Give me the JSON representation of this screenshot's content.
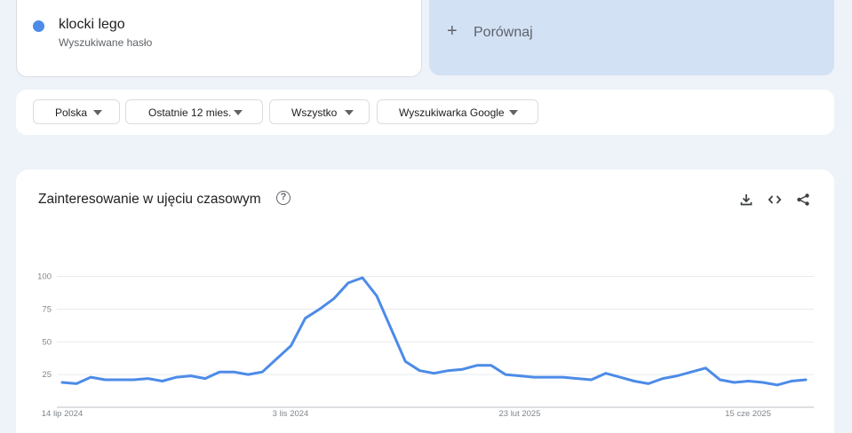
{
  "term": {
    "title": "klocki lego",
    "subtitle": "Wyszukiwane hasło",
    "color": "#4c8be8"
  },
  "compare": {
    "label": "Porównaj"
  },
  "filters": [
    {
      "label": "Polska"
    },
    {
      "label": "Ostatnie 12 mies."
    },
    {
      "label": "Wszystko"
    },
    {
      "label": "Wyszukiwarka Google"
    }
  ],
  "chart": {
    "title": "Zainteresowanie w ujęciu czasowym",
    "icons": [
      "help-icon",
      "download-icon",
      "embed-icon",
      "share-icon"
    ]
  },
  "chart_data": {
    "type": "line",
    "title": "Zainteresowanie w ujęciu czasowym",
    "ylim": [
      0,
      100
    ],
    "yticks": [
      "100",
      "75",
      "50",
      "25"
    ],
    "xticks": [
      "14 lip 2024",
      "3 lis 2024",
      "23 lut 2025",
      "15 cze 2025"
    ],
    "grid": true,
    "series": [
      {
        "color": "#4c8be8",
        "values": [
          19,
          18,
          23,
          21,
          21,
          21,
          22,
          20,
          23,
          24,
          22,
          27,
          27,
          25,
          27,
          37,
          47,
          68,
          75,
          83,
          95,
          99,
          85,
          60,
          35,
          28,
          26,
          28,
          29,
          32,
          32,
          25,
          24,
          23,
          23,
          23,
          22,
          21,
          26,
          23,
          20,
          18,
          22,
          24,
          27,
          30,
          21,
          19,
          20,
          19,
          17,
          20,
          21
        ]
      }
    ]
  }
}
